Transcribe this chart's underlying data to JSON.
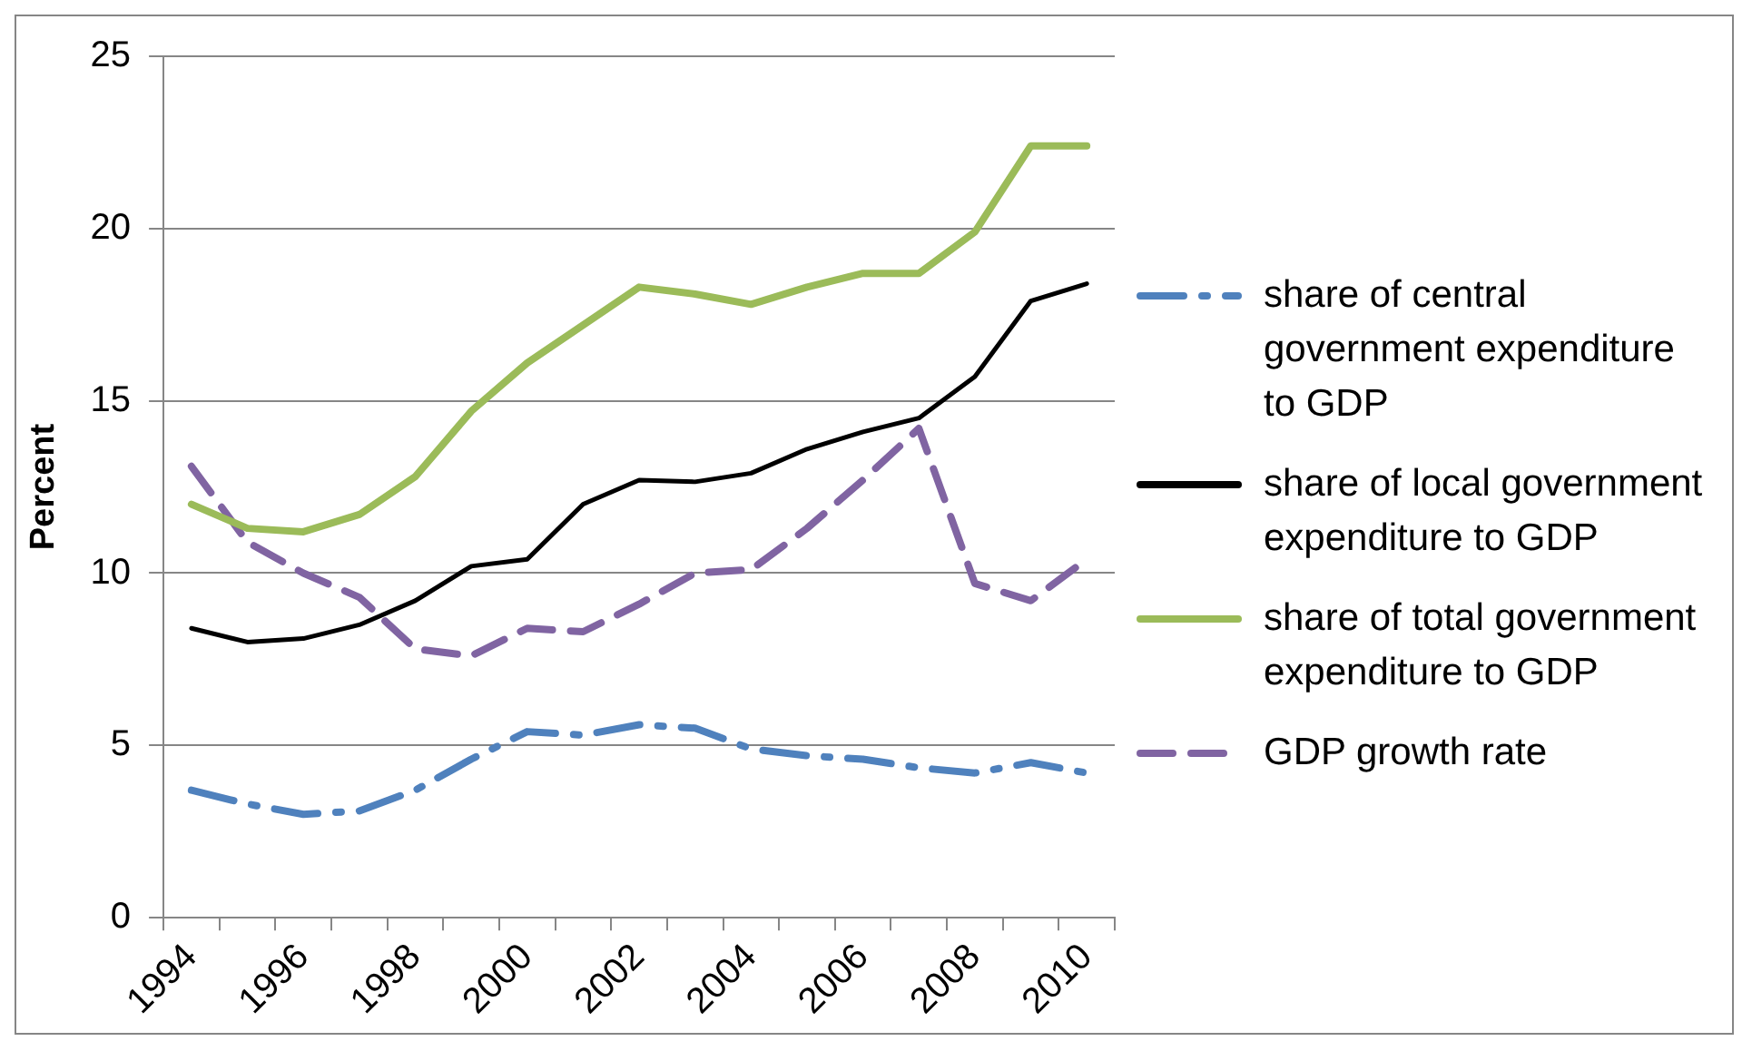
{
  "chart_data": {
    "type": "line",
    "ylabel": "Percent",
    "categories": [
      "1994",
      null,
      "1996",
      null,
      "1998",
      null,
      "2000",
      null,
      "2002",
      null,
      "2004",
      null,
      "2006",
      null,
      "2008",
      null,
      "2010"
    ],
    "series": [
      {
        "name": "share of central government expenditure to GDP",
        "color": "#4f81bd",
        "line_style": "dotted",
        "values": [
          3.7,
          3.3,
          3.0,
          3.1,
          3.7,
          4.6,
          5.4,
          5.3,
          5.6,
          5.5,
          4.9,
          4.7,
          4.6,
          4.35,
          4.2,
          4.5,
          4.2
        ]
      },
      {
        "name": "share of local government expenditure to GDP",
        "color": "#000000",
        "line_style": "solid",
        "values": [
          8.4,
          8.0,
          8.1,
          8.5,
          9.2,
          10.2,
          10.4,
          12.0,
          12.7,
          12.65,
          12.9,
          13.6,
          14.1,
          14.5,
          15.7,
          17.9,
          18.4
        ]
      },
      {
        "name": "share of total government expenditure to GDP",
        "color": "#9bbb59",
        "line_style": "solid",
        "values": [
          12.0,
          11.3,
          11.2,
          11.7,
          12.8,
          14.7,
          16.1,
          17.2,
          18.3,
          18.1,
          17.8,
          18.3,
          18.7,
          18.7,
          19.9,
          22.4,
          22.4
        ]
      },
      {
        "name": "GDP growth rate",
        "color": "#8064a2",
        "line_style": "dashed",
        "values": [
          13.1,
          10.9,
          10.0,
          9.3,
          7.8,
          7.6,
          8.4,
          8.3,
          9.1,
          10.0,
          10.1,
          11.3,
          12.7,
          14.2,
          9.7,
          9.2,
          10.4
        ]
      }
    ],
    "ylim": [
      0,
      25
    ],
    "yticks": [
      0,
      5,
      10,
      15,
      20,
      25
    ],
    "grid": "y",
    "legend": "right",
    "marker": "none"
  }
}
